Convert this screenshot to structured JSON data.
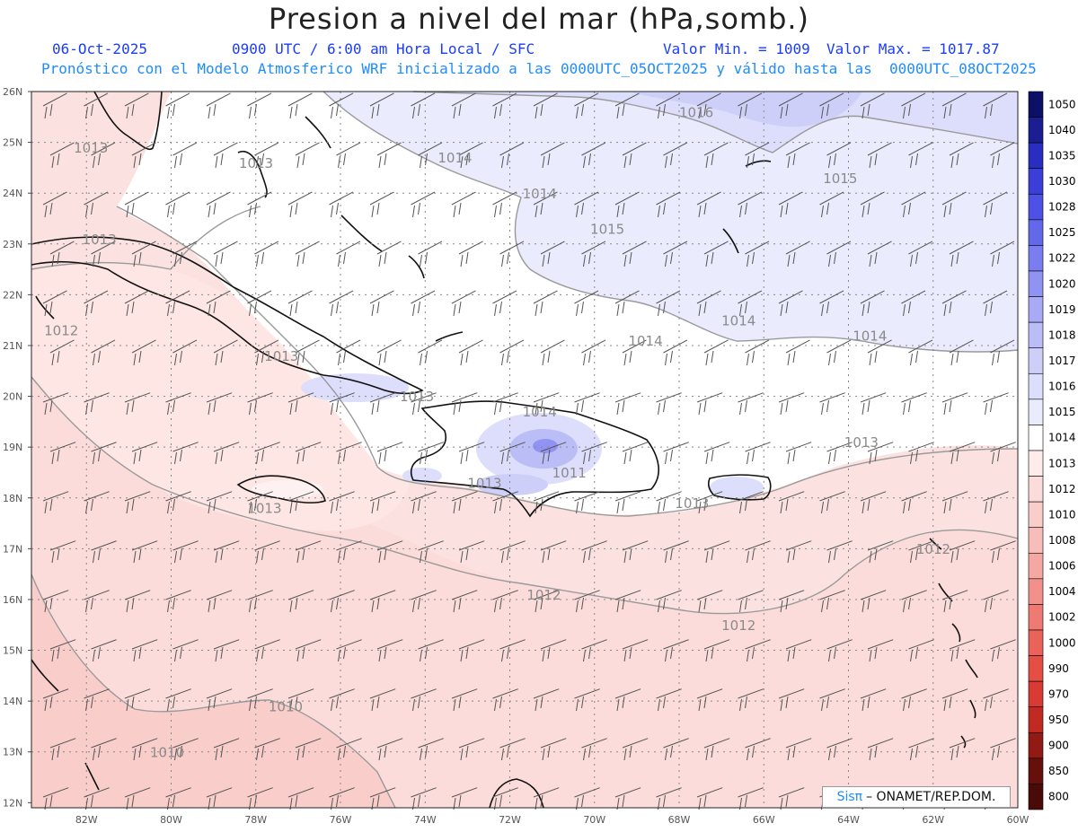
{
  "title": "Presion a nivel del mar (hPa,somb.)",
  "date": "06-Oct-2025",
  "valid_time": "0900 UTC / 6:00 am Hora Local / SFC",
  "min_value_text": "Valor Min. = 1009",
  "max_value_text": "Valor Max. = 1017.87",
  "model_info": "Pronóstico con el Modelo Atmosferico WRF inicializado a las 0000UTC_05OCT2025 y válido hasta las  0000UTC_08OCT2025",
  "credit": {
    "brand": "Sisπ",
    "text": "– ONAMET/REP.DOM."
  },
  "lat_labels": [
    "26N",
    "25N",
    "24N",
    "23N",
    "22N",
    "21N",
    "20N",
    "19N",
    "18N",
    "17N",
    "16N",
    "15N",
    "14N",
    "13N",
    "12N"
  ],
  "lon_labels": [
    "82W",
    "80W",
    "78W",
    "76W",
    "74W",
    "72W",
    "70W",
    "68W",
    "66W",
    "64W",
    "62W",
    "60W"
  ],
  "colorbar": {
    "levels": [
      "1050",
      "1040",
      "1035",
      "1030",
      "1028",
      "1025",
      "1022",
      "1020",
      "1019",
      "1018",
      "1017",
      "1016",
      "1015",
      "1014",
      "1013",
      "1012",
      "1010",
      "1008",
      "1006",
      "1004",
      "1002",
      "1000",
      "990",
      "970",
      "950",
      "900",
      "850",
      "800"
    ],
    "colors": [
      "#0c1066",
      "#1a1e92",
      "#2a2ec0",
      "#3b3fd8",
      "#4e52e4",
      "#6367ea",
      "#7a7def",
      "#9193f2",
      "#a8aaf5",
      "#bbbdf7",
      "#cdcff9",
      "#dcdefb",
      "#eaebfd",
      "#ffffff",
      "#fdeceb",
      "#fbdcda",
      "#f9cdca",
      "#f7bdb9",
      "#f5a8a3",
      "#f2918b",
      "#ef7a73",
      "#ea635b",
      "#e44e45",
      "#d83b33",
      "#c02a22",
      "#921a14",
      "#66100c",
      "#4a0a08"
    ]
  },
  "isobar_labels": [
    {
      "text": "1016",
      "lon": -68.0,
      "lat": 25.5
    },
    {
      "text": "1015",
      "lon": -64.6,
      "lat": 24.2
    },
    {
      "text": "1015",
      "lon": -70.1,
      "lat": 23.2
    },
    {
      "text": "1014",
      "lon": -73.7,
      "lat": 24.6
    },
    {
      "text": "1014",
      "lon": -71.7,
      "lat": 23.9
    },
    {
      "text": "1014",
      "lon": -67.0,
      "lat": 21.4
    },
    {
      "text": "1014",
      "lon": -69.2,
      "lat": 21.0
    },
    {
      "text": "1014",
      "lon": -63.9,
      "lat": 21.1
    },
    {
      "text": "1014",
      "lon": -71.7,
      "lat": 19.6
    },
    {
      "text": "1013",
      "lon": -82.3,
      "lat": 24.8
    },
    {
      "text": "1013",
      "lon": -78.4,
      "lat": 24.5
    },
    {
      "text": "1013",
      "lon": -82.1,
      "lat": 23.0
    },
    {
      "text": "1013",
      "lon": -77.8,
      "lat": 20.7
    },
    {
      "text": "1013",
      "lon": -74.6,
      "lat": 19.9
    },
    {
      "text": "1013",
      "lon": -73.0,
      "lat": 18.2
    },
    {
      "text": "1013",
      "lon": -64.1,
      "lat": 19.0
    },
    {
      "text": "1013",
      "lon": -68.1,
      "lat": 17.8
    },
    {
      "text": "1013",
      "lon": -78.2,
      "lat": 17.7
    },
    {
      "text": "1012",
      "lon": -83.0,
      "lat": 21.2
    },
    {
      "text": "1012",
      "lon": -71.6,
      "lat": 16.0
    },
    {
      "text": "1012",
      "lon": -67.0,
      "lat": 15.4
    },
    {
      "text": "1012",
      "lon": -62.4,
      "lat": 16.9
    },
    {
      "text": "1010",
      "lon": -77.7,
      "lat": 13.8
    },
    {
      "text": "1010",
      "lon": -80.5,
      "lat": 12.9
    },
    {
      "text": "1011",
      "lon": -71.0,
      "lat": 18.4
    }
  ]
}
